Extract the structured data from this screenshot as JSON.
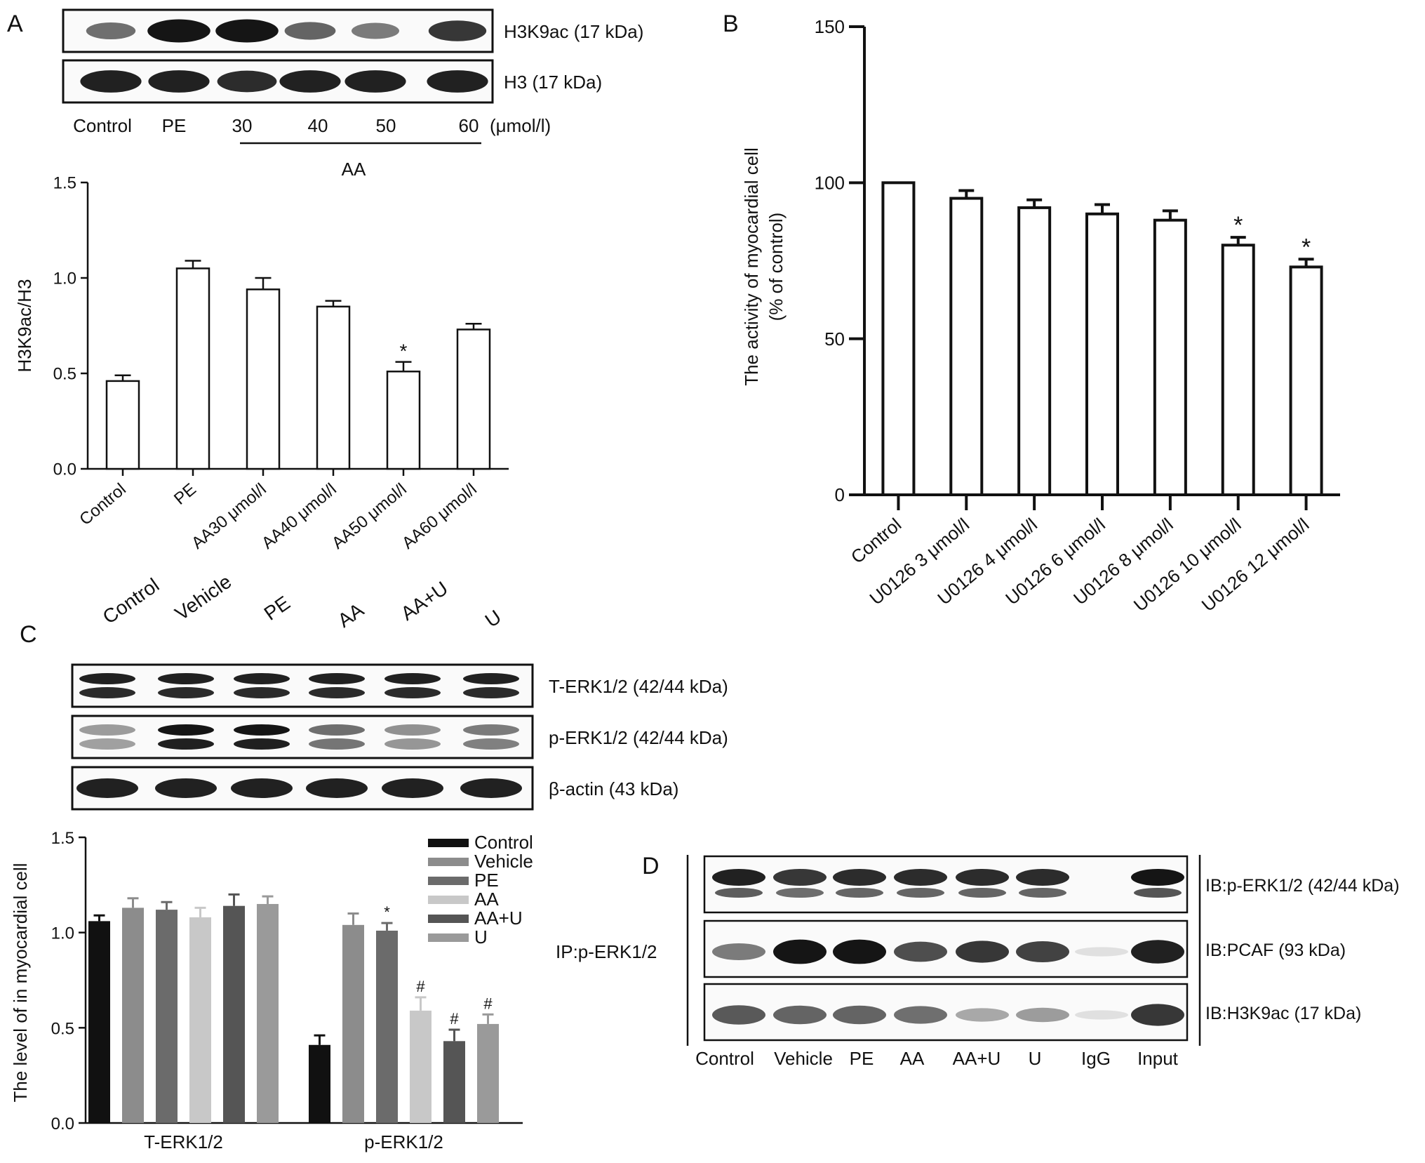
{
  "panels": {
    "A": {
      "letter": "A",
      "blot": {
        "rows": [
          {
            "label": "H3K9ac (17 kDa)",
            "bands": [
              0.55,
              0.95,
              0.95,
              0.6,
              0.5,
              0.8
            ]
          },
          {
            "label": "H3 (17 kDa)",
            "bands": [
              0.9,
              0.9,
              0.85,
              0.9,
              0.9,
              0.9
            ]
          }
        ],
        "lanes": [
          "Control",
          "PE",
          "30",
          "40",
          "50",
          "60"
        ],
        "unit": "(μmol/l)",
        "group_label": "AA"
      },
      "chart_data": {
        "type": "bar",
        "categories": [
          "Control",
          "PE",
          "AA30 μmol/l",
          "AA40 μmol/l",
          "AA50 μmol/l",
          "AA60 μmol/l"
        ],
        "values": [
          0.46,
          1.05,
          0.94,
          0.85,
          0.51,
          0.73
        ],
        "errors": [
          0.03,
          0.04,
          0.06,
          0.03,
          0.05,
          0.03
        ],
        "annotations": [
          "",
          "",
          "",
          "",
          "*",
          ""
        ],
        "ylabel": "H3K9ac/H3",
        "ylim": [
          0,
          1.5
        ],
        "yticks": [
          "0.0",
          "0.5",
          "1.0",
          "1.5"
        ]
      }
    },
    "B": {
      "letter": "B",
      "chart_data": {
        "type": "bar",
        "categories": [
          "Control",
          "U0126 3 μmol/l",
          "U0126 4 μmol/l",
          "U0126 6 μmol/l",
          "U0126 8 μmol/l",
          "U0126 10 μmol/l",
          "U0126 12 μmol/l"
        ],
        "values": [
          100,
          95,
          92,
          90,
          88,
          80,
          73
        ],
        "errors": [
          0,
          2.5,
          2.5,
          3,
          3,
          2.5,
          2.5
        ],
        "annotations": [
          "",
          "",
          "",
          "",
          "",
          "*",
          "*"
        ],
        "ylabel": "The activity of myocardial cell",
        "ylabel2": "(% of control)",
        "ylim": [
          0,
          150
        ],
        "yticks": [
          "0",
          "50",
          "100",
          "150"
        ]
      }
    },
    "C": {
      "letter": "C",
      "blot": {
        "lanes": [
          "Control",
          "Vehicle",
          "PE",
          "AA",
          "AA+U",
          "U"
        ],
        "rows": [
          {
            "label": "T-ERK1/2 (42/44 kDa)",
            "bands": [
              0.9,
              0.9,
              0.9,
              0.9,
              0.9,
              0.9
            ],
            "double": true
          },
          {
            "label": "p-ERK1/2 (42/44 kDa)",
            "bands": [
              0.35,
              0.95,
              0.95,
              0.55,
              0.4,
              0.5
            ],
            "double": true
          },
          {
            "label": "β-actin (43 kDa)",
            "bands": [
              0.9,
              0.9,
              0.9,
              0.9,
              0.9,
              0.9
            ]
          }
        ]
      },
      "chart_data": {
        "type": "bar",
        "groups": [
          "T-ERK1/2",
          "p-ERK1/2"
        ],
        "series": [
          {
            "name": "Control",
            "color": "#111111",
            "values": [
              1.06,
              0.41
            ],
            "errors": [
              0.03,
              0.05
            ],
            "annotations": [
              "",
              ""
            ]
          },
          {
            "name": "Vehicle",
            "color": "#8c8c8c",
            "values": [
              1.13,
              1.04
            ],
            "errors": [
              0.05,
              0.06
            ],
            "annotations": [
              "",
              ""
            ]
          },
          {
            "name": "PE",
            "color": "#6b6b6b",
            "values": [
              1.12,
              1.01
            ],
            "errors": [
              0.04,
              0.04
            ],
            "annotations": [
              "",
              "*"
            ]
          },
          {
            "name": "AA",
            "color": "#c8c8c8",
            "values": [
              1.08,
              0.59
            ],
            "errors": [
              0.05,
              0.07
            ],
            "annotations": [
              "",
              "#"
            ]
          },
          {
            "name": "AA+U",
            "color": "#555555",
            "values": [
              1.14,
              0.43
            ],
            "errors": [
              0.06,
              0.06
            ],
            "annotations": [
              "",
              "#"
            ]
          },
          {
            "name": "U",
            "color": "#9a9a9a",
            "values": [
              1.15,
              0.52
            ],
            "errors": [
              0.04,
              0.05
            ],
            "annotations": [
              "",
              "#"
            ]
          }
        ],
        "ylabel": "The level of in myocardial cell",
        "ylim": [
          0,
          1.5
        ],
        "yticks": [
          "0.0",
          "0.5",
          "1.0",
          "1.5"
        ],
        "legend": "top-right"
      }
    },
    "D": {
      "letter": "D",
      "ip_label": "IP:p-ERK1/2",
      "lanes": [
        "Control",
        "Vehicle",
        "PE",
        "AA",
        "AA+U",
        "U",
        "IgG",
        "Input"
      ],
      "rows": [
        {
          "label": "IB:p-ERK1/2 (42/44 kDa)",
          "bands": [
            0.9,
            0.8,
            0.85,
            0.85,
            0.85,
            0.85,
            0.0,
            0.95
          ],
          "double": true
        },
        {
          "label": "IB:PCAF (93 kDa)",
          "bands": [
            0.5,
            0.95,
            0.95,
            0.7,
            0.8,
            0.75,
            0.05,
            0.9
          ]
        },
        {
          "label": "IB:H3K9ac (17 kDa)",
          "bands": [
            0.65,
            0.6,
            0.6,
            0.55,
            0.3,
            0.35,
            0.05,
            0.8
          ]
        }
      ]
    }
  }
}
